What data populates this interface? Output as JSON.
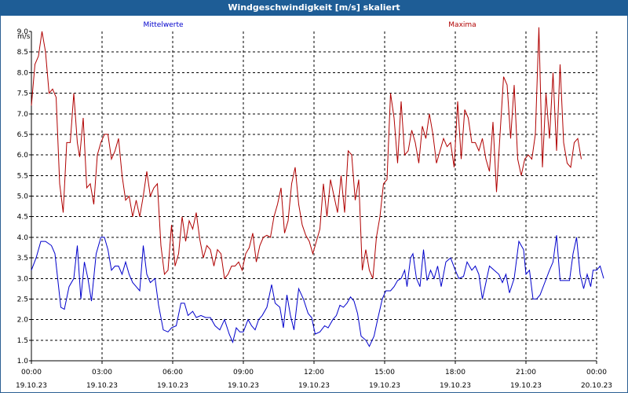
{
  "window": {
    "title": "Windgeschwindigkeit [m/s] skaliert"
  },
  "colors": {
    "title_bar": "#1e5d96",
    "frame": "#2b5f93",
    "series_mittelwerte": "#0000cc",
    "series_maxima": "#b00000",
    "grid": "#000000"
  },
  "chart_data": {
    "type": "line",
    "title": "Windgeschwindigkeit [m/s] skaliert",
    "ylabel": "m/s",
    "xlabel": "",
    "ylim": [
      1.0,
      9.0
    ],
    "yticks": [
      "1.0",
      "1.5",
      "2.0",
      "2.5",
      "3.0",
      "3.5",
      "4.0",
      "4.5",
      "5.0",
      "5.5",
      "6.0",
      "6.5",
      "7.0",
      "7.5",
      "8.0",
      "8.5",
      "9.0"
    ],
    "xlim_hours": [
      0,
      24
    ],
    "xticks": [
      {
        "time": "00:00",
        "date": "19.10.23"
      },
      {
        "time": "03:00",
        "date": "19.10.23"
      },
      {
        "time": "06:00",
        "date": "19.10.23"
      },
      {
        "time": "09:00",
        "date": "19.10.23"
      },
      {
        "time": "12:00",
        "date": "19.10.23"
      },
      {
        "time": "15:00",
        "date": "19.10.23"
      },
      {
        "time": "18:00",
        "date": "19.10.23"
      },
      {
        "time": "21:00",
        "date": "19.10.23"
      },
      {
        "time": "00:00",
        "date": "20.10.23"
      }
    ],
    "grid": true,
    "series": [
      {
        "name": "Mittelwerte",
        "color": "#0000cc",
        "points": [
          [
            0.0,
            3.2
          ],
          [
            0.2,
            3.5
          ],
          [
            0.4,
            3.9
          ],
          [
            0.6,
            3.9
          ],
          [
            0.85,
            3.8
          ],
          [
            1.0,
            3.6
          ],
          [
            1.25,
            2.3
          ],
          [
            1.4,
            2.25
          ],
          [
            1.6,
            2.8
          ],
          [
            1.8,
            3.0
          ],
          [
            1.95,
            3.8
          ],
          [
            2.1,
            2.5
          ],
          [
            2.25,
            3.4
          ],
          [
            2.4,
            3.0
          ],
          [
            2.55,
            2.45
          ],
          [
            2.75,
            3.6
          ],
          [
            2.95,
            4.0
          ],
          [
            3.1,
            4.0
          ],
          [
            3.25,
            3.7
          ],
          [
            3.4,
            3.2
          ],
          [
            3.55,
            3.3
          ],
          [
            3.7,
            3.3
          ],
          [
            3.85,
            3.1
          ],
          [
            4.0,
            3.4
          ],
          [
            4.15,
            3.1
          ],
          [
            4.3,
            2.9
          ],
          [
            4.45,
            2.8
          ],
          [
            4.6,
            2.7
          ],
          [
            4.75,
            3.8
          ],
          [
            4.9,
            3.1
          ],
          [
            5.05,
            2.9
          ],
          [
            5.25,
            3.0
          ],
          [
            5.4,
            2.35
          ],
          [
            5.6,
            1.75
          ],
          [
            5.8,
            1.7
          ],
          [
            5.95,
            1.8
          ],
          [
            6.15,
            1.85
          ],
          [
            6.35,
            2.4
          ],
          [
            6.5,
            2.4
          ],
          [
            6.65,
            2.1
          ],
          [
            6.85,
            2.2
          ],
          [
            7.0,
            2.05
          ],
          [
            7.2,
            2.1
          ],
          [
            7.4,
            2.05
          ],
          [
            7.6,
            2.05
          ],
          [
            7.8,
            1.85
          ],
          [
            8.0,
            1.75
          ],
          [
            8.2,
            2.0
          ],
          [
            8.4,
            1.65
          ],
          [
            8.55,
            1.45
          ],
          [
            8.7,
            1.8
          ],
          [
            8.85,
            1.7
          ],
          [
            9.0,
            1.7
          ],
          [
            9.2,
            2.0
          ],
          [
            9.35,
            1.85
          ],
          [
            9.5,
            1.75
          ],
          [
            9.65,
            2.0
          ],
          [
            9.8,
            2.1
          ],
          [
            10.0,
            2.3
          ],
          [
            10.2,
            2.85
          ],
          [
            10.35,
            2.4
          ],
          [
            10.55,
            2.3
          ],
          [
            10.7,
            1.8
          ],
          [
            10.85,
            2.6
          ],
          [
            11.0,
            2.1
          ],
          [
            11.15,
            1.75
          ],
          [
            11.35,
            2.75
          ],
          [
            11.55,
            2.5
          ],
          [
            11.75,
            2.15
          ],
          [
            11.9,
            2.05
          ],
          [
            12.05,
            1.65
          ],
          [
            12.25,
            1.7
          ],
          [
            12.45,
            1.85
          ],
          [
            12.6,
            1.8
          ],
          [
            12.8,
            2.0
          ],
          [
            12.95,
            2.1
          ],
          [
            13.1,
            2.35
          ],
          [
            13.25,
            2.3
          ],
          [
            13.4,
            2.4
          ],
          [
            13.55,
            2.55
          ],
          [
            13.7,
            2.45
          ],
          [
            13.85,
            2.15
          ],
          [
            14.0,
            1.6
          ],
          [
            14.2,
            1.5
          ],
          [
            14.35,
            1.35
          ],
          [
            14.55,
            1.6
          ],
          [
            14.7,
            2.0
          ],
          [
            14.9,
            2.5
          ],
          [
            15.05,
            2.7
          ],
          [
            15.25,
            2.7
          ],
          [
            15.4,
            2.8
          ],
          [
            15.55,
            2.95
          ],
          [
            15.7,
            3.0
          ],
          [
            15.85,
            3.2
          ],
          [
            15.95,
            2.8
          ],
          [
            16.1,
            3.5
          ],
          [
            16.2,
            3.6
          ],
          [
            16.35,
            3.0
          ],
          [
            16.5,
            2.8
          ],
          [
            16.65,
            3.7
          ],
          [
            16.8,
            2.95
          ],
          [
            16.95,
            3.2
          ],
          [
            17.1,
            3.0
          ],
          [
            17.25,
            3.3
          ],
          [
            17.4,
            2.8
          ],
          [
            17.6,
            3.4
          ],
          [
            17.8,
            3.5
          ],
          [
            18.0,
            3.2
          ],
          [
            18.15,
            3.0
          ],
          [
            18.35,
            3.05
          ],
          [
            18.5,
            3.4
          ],
          [
            18.7,
            3.2
          ],
          [
            18.85,
            3.3
          ],
          [
            19.0,
            3.1
          ],
          [
            19.15,
            2.5
          ],
          [
            19.3,
            2.9
          ],
          [
            19.45,
            3.3
          ],
          [
            19.65,
            3.2
          ],
          [
            19.85,
            3.1
          ],
          [
            20.0,
            2.9
          ],
          [
            20.15,
            3.1
          ],
          [
            20.3,
            2.65
          ],
          [
            20.5,
            3.0
          ],
          [
            20.7,
            3.9
          ],
          [
            20.9,
            3.7
          ],
          [
            21.0,
            3.1
          ],
          [
            21.15,
            3.2
          ],
          [
            21.3,
            2.5
          ],
          [
            21.45,
            2.5
          ],
          [
            21.6,
            2.6
          ],
          [
            21.8,
            2.9
          ],
          [
            22.0,
            3.2
          ],
          [
            22.15,
            3.4
          ],
          [
            22.3,
            4.05
          ],
          [
            22.45,
            2.95
          ],
          [
            22.65,
            2.95
          ],
          [
            22.85,
            2.95
          ],
          [
            23.0,
            3.6
          ],
          [
            23.15,
            4.0
          ],
          [
            23.3,
            3.1
          ],
          [
            23.45,
            2.75
          ],
          [
            23.6,
            3.1
          ],
          [
            23.75,
            2.8
          ],
          [
            23.85,
            3.2
          ],
          [
            24.0,
            3.2
          ],
          [
            24.15,
            3.3
          ],
          [
            24.3,
            3.0
          ]
        ]
      },
      {
        "name": "Maxima",
        "color": "#b00000",
        "points": [
          [
            0.0,
            7.2
          ],
          [
            0.15,
            8.2
          ],
          [
            0.3,
            8.4
          ],
          [
            0.45,
            9.0
          ],
          [
            0.6,
            8.5
          ],
          [
            0.75,
            7.5
          ],
          [
            0.9,
            7.6
          ],
          [
            1.05,
            7.4
          ],
          [
            1.2,
            5.3
          ],
          [
            1.35,
            4.6
          ],
          [
            1.5,
            6.3
          ],
          [
            1.65,
            6.3
          ],
          [
            1.8,
            7.5
          ],
          [
            1.95,
            6.3
          ],
          [
            2.05,
            5.95
          ],
          [
            2.2,
            6.9
          ],
          [
            2.35,
            5.2
          ],
          [
            2.5,
            5.3
          ],
          [
            2.65,
            4.8
          ],
          [
            2.8,
            6.0
          ],
          [
            2.95,
            6.3
          ],
          [
            3.1,
            6.5
          ],
          [
            3.25,
            6.5
          ],
          [
            3.4,
            5.9
          ],
          [
            3.55,
            6.1
          ],
          [
            3.7,
            6.4
          ],
          [
            3.85,
            5.5
          ],
          [
            4.0,
            4.9
          ],
          [
            4.15,
            5.0
          ],
          [
            4.3,
            4.5
          ],
          [
            4.45,
            4.9
          ],
          [
            4.6,
            4.5
          ],
          [
            4.75,
            5.0
          ],
          [
            4.9,
            5.6
          ],
          [
            5.05,
            5.0
          ],
          [
            5.2,
            5.2
          ],
          [
            5.35,
            5.3
          ],
          [
            5.5,
            3.8
          ],
          [
            5.65,
            3.1
          ],
          [
            5.8,
            3.2
          ],
          [
            5.95,
            4.3
          ],
          [
            6.1,
            3.3
          ],
          [
            6.25,
            3.6
          ],
          [
            6.4,
            4.5
          ],
          [
            6.55,
            3.9
          ],
          [
            6.7,
            4.4
          ],
          [
            6.85,
            4.2
          ],
          [
            7.0,
            4.6
          ],
          [
            7.15,
            3.95
          ],
          [
            7.3,
            3.5
          ],
          [
            7.45,
            3.8
          ],
          [
            7.6,
            3.7
          ],
          [
            7.75,
            3.3
          ],
          [
            7.9,
            3.7
          ],
          [
            8.05,
            3.6
          ],
          [
            8.2,
            3.0
          ],
          [
            8.35,
            3.1
          ],
          [
            8.5,
            3.3
          ],
          [
            8.65,
            3.3
          ],
          [
            8.8,
            3.4
          ],
          [
            8.95,
            3.2
          ],
          [
            9.1,
            3.6
          ],
          [
            9.25,
            3.75
          ],
          [
            9.4,
            4.1
          ],
          [
            9.55,
            3.4
          ],
          [
            9.7,
            3.8
          ],
          [
            9.85,
            4.0
          ],
          [
            10.0,
            4.05
          ],
          [
            10.15,
            4.0
          ],
          [
            10.3,
            4.5
          ],
          [
            10.45,
            4.8
          ],
          [
            10.6,
            5.2
          ],
          [
            10.75,
            4.1
          ],
          [
            10.9,
            4.4
          ],
          [
            11.05,
            5.3
          ],
          [
            11.2,
            5.7
          ],
          [
            11.35,
            4.8
          ],
          [
            11.5,
            4.3
          ],
          [
            11.65,
            4.05
          ],
          [
            11.8,
            3.9
          ],
          [
            11.95,
            3.6
          ],
          [
            12.1,
            3.9
          ],
          [
            12.25,
            4.2
          ],
          [
            12.4,
            5.3
          ],
          [
            12.55,
            4.5
          ],
          [
            12.7,
            5.4
          ],
          [
            12.85,
            5.0
          ],
          [
            13.0,
            4.6
          ],
          [
            13.15,
            5.5
          ],
          [
            13.3,
            4.6
          ],
          [
            13.45,
            6.1
          ],
          [
            13.6,
            6.0
          ],
          [
            13.75,
            4.9
          ],
          [
            13.9,
            5.4
          ],
          [
            14.05,
            3.2
          ],
          [
            14.2,
            3.7
          ],
          [
            14.35,
            3.2
          ],
          [
            14.5,
            3.0
          ],
          [
            14.65,
            4.0
          ],
          [
            14.8,
            4.5
          ],
          [
            14.95,
            5.3
          ],
          [
            15.1,
            5.4
          ],
          [
            15.25,
            7.5
          ],
          [
            15.4,
            6.9
          ],
          [
            15.55,
            5.8
          ],
          [
            15.7,
            7.3
          ],
          [
            15.85,
            6.0
          ],
          [
            16.0,
            6.1
          ],
          [
            16.15,
            6.6
          ],
          [
            16.3,
            6.3
          ],
          [
            16.45,
            5.8
          ],
          [
            16.6,
            6.7
          ],
          [
            16.75,
            6.4
          ],
          [
            16.9,
            7.0
          ],
          [
            17.05,
            6.5
          ],
          [
            17.2,
            5.8
          ],
          [
            17.35,
            6.1
          ],
          [
            17.5,
            6.4
          ],
          [
            17.65,
            6.2
          ],
          [
            17.8,
            6.3
          ],
          [
            17.95,
            5.7
          ],
          [
            18.1,
            7.3
          ],
          [
            18.25,
            5.9
          ],
          [
            18.4,
            7.1
          ],
          [
            18.55,
            6.9
          ],
          [
            18.7,
            6.3
          ],
          [
            18.85,
            6.3
          ],
          [
            19.0,
            6.1
          ],
          [
            19.15,
            6.4
          ],
          [
            19.3,
            5.9
          ],
          [
            19.45,
            5.6
          ],
          [
            19.6,
            6.8
          ],
          [
            19.75,
            5.1
          ],
          [
            19.9,
            6.5
          ],
          [
            20.05,
            7.9
          ],
          [
            20.2,
            7.7
          ],
          [
            20.35,
            6.4
          ],
          [
            20.5,
            7.7
          ],
          [
            20.65,
            5.9
          ],
          [
            20.8,
            5.5
          ],
          [
            20.95,
            5.9
          ],
          [
            21.1,
            6.0
          ],
          [
            21.25,
            5.9
          ],
          [
            21.4,
            6.5
          ],
          [
            21.55,
            9.1
          ],
          [
            21.7,
            5.7
          ],
          [
            21.85,
            7.5
          ],
          [
            22.0,
            6.4
          ],
          [
            22.15,
            8.0
          ],
          [
            22.3,
            6.1
          ],
          [
            22.45,
            8.2
          ],
          [
            22.6,
            6.3
          ],
          [
            22.75,
            5.8
          ],
          [
            22.9,
            5.7
          ],
          [
            23.05,
            6.3
          ],
          [
            23.2,
            6.4
          ],
          [
            23.35,
            5.9
          ]
        ]
      }
    ]
  }
}
